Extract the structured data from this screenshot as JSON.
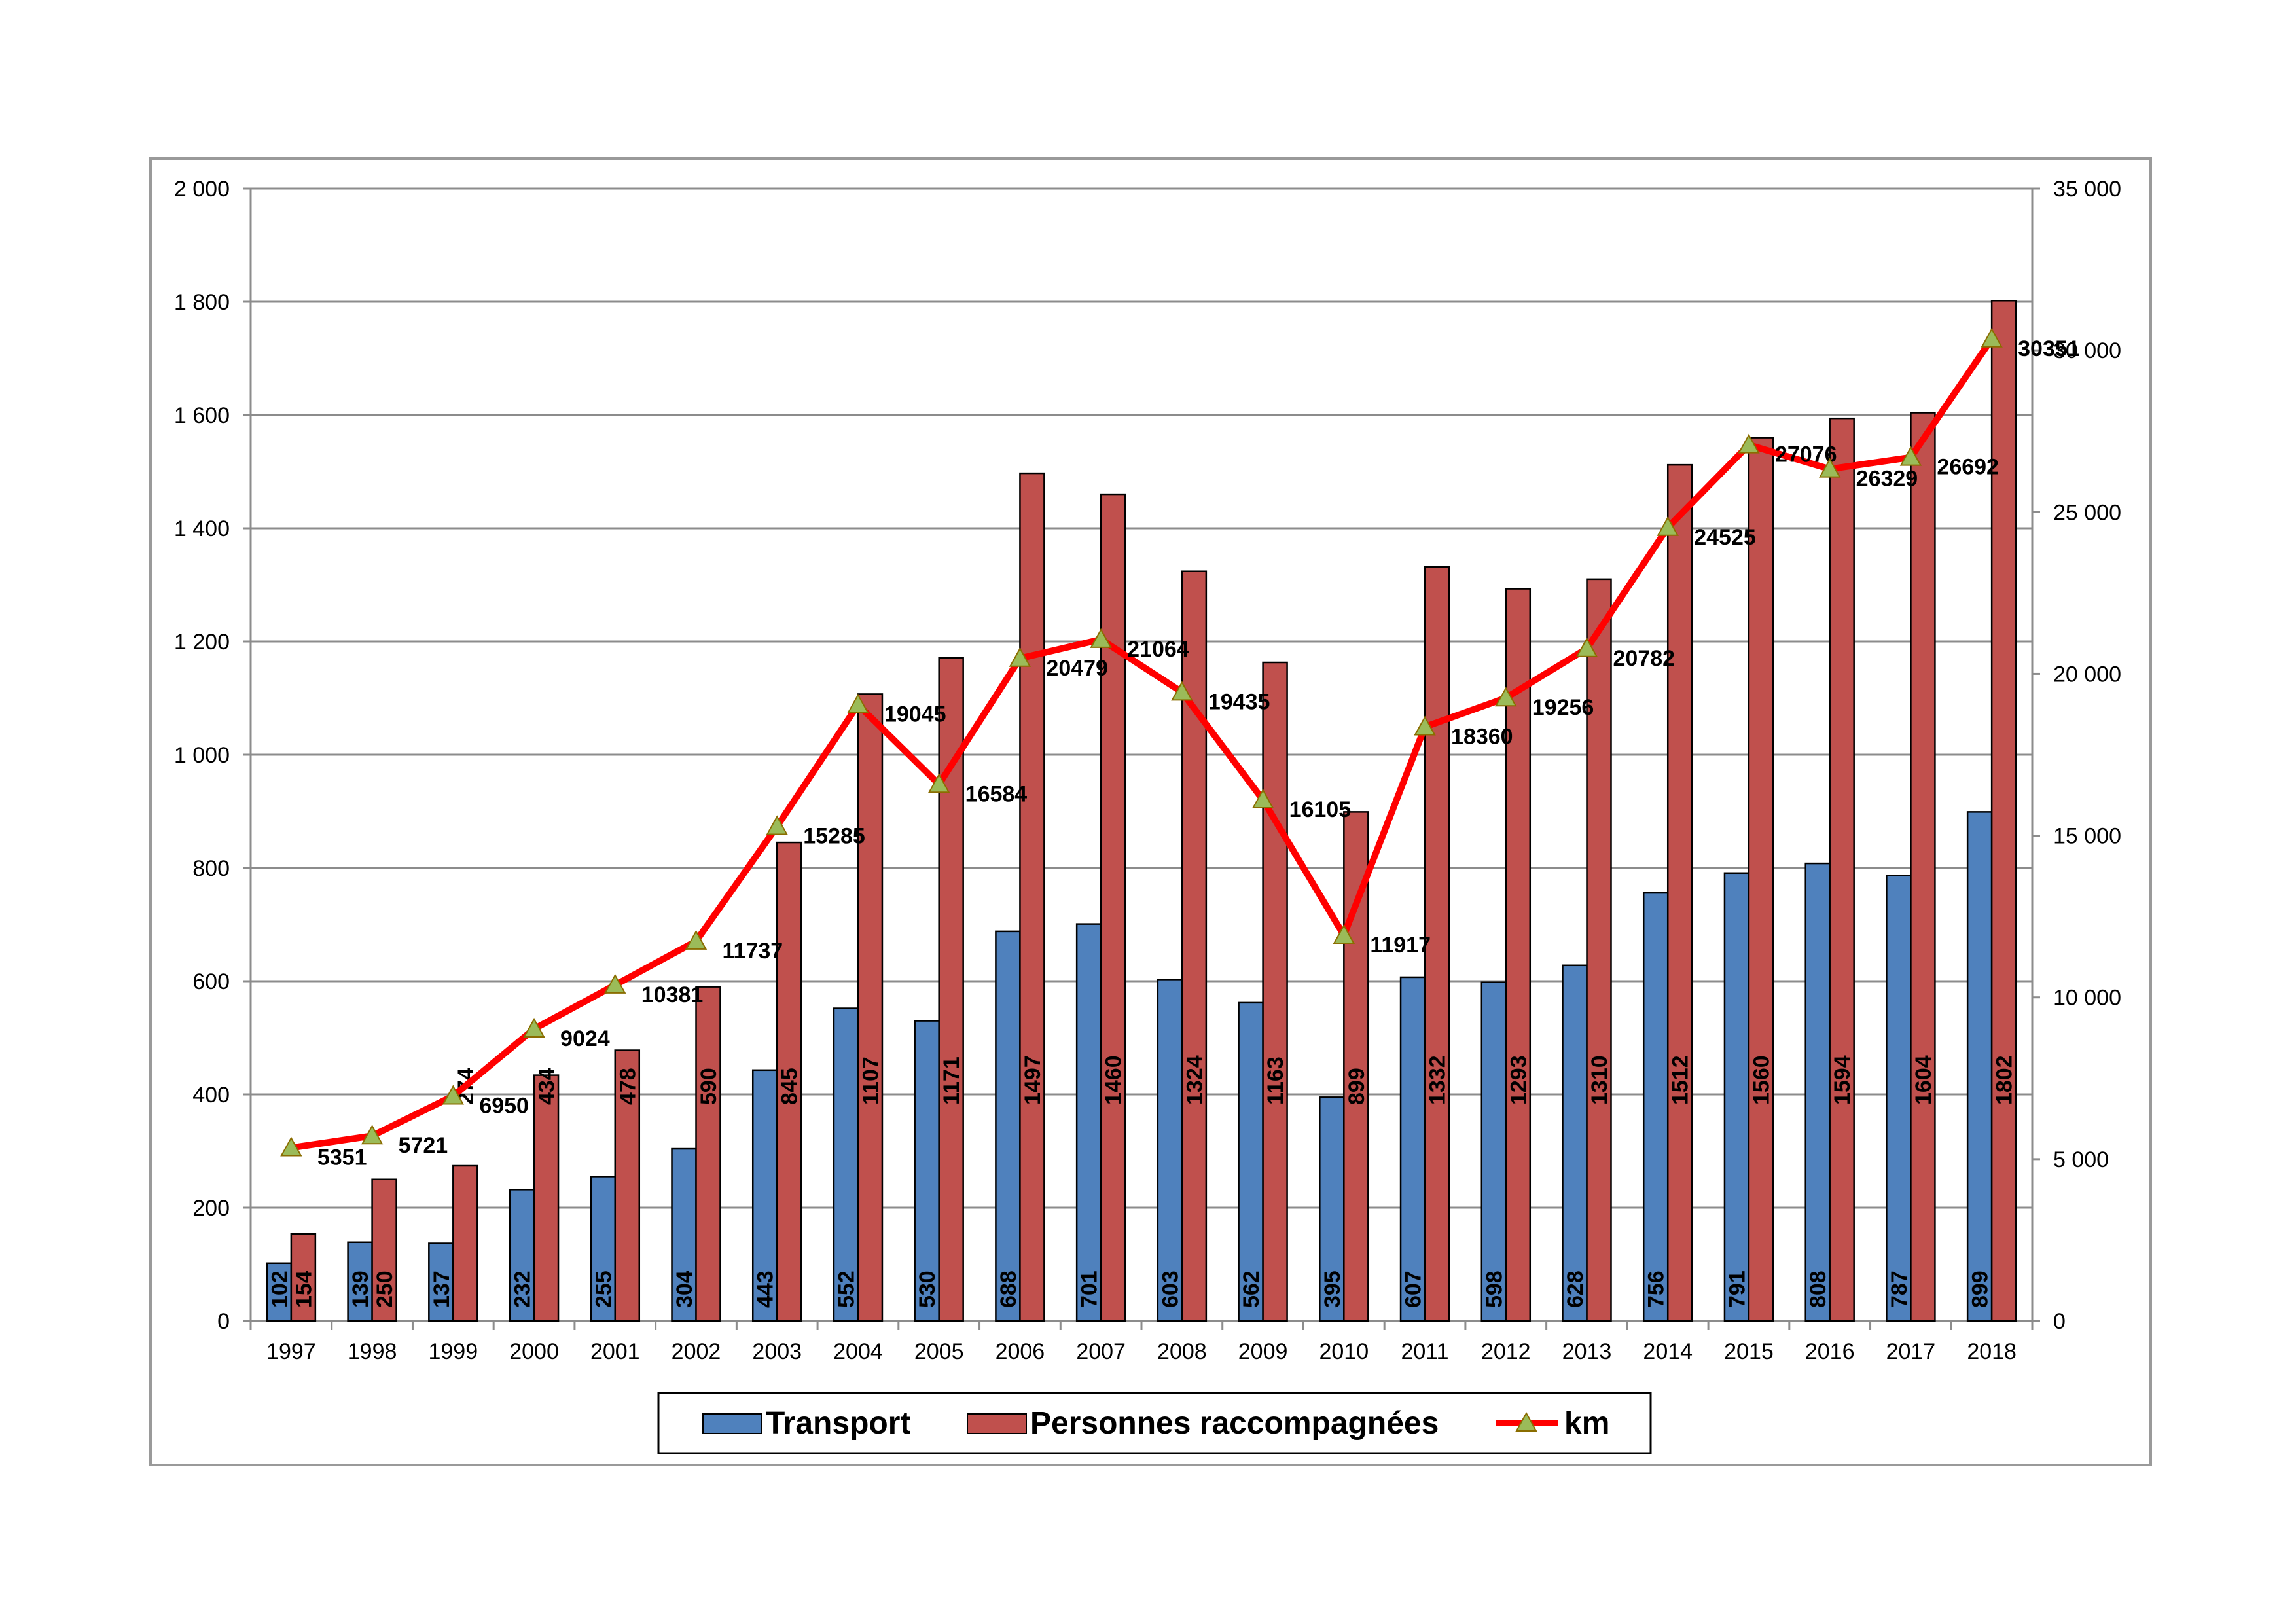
{
  "chart_data": {
    "type": "bar",
    "categories": [
      "1997",
      "1998",
      "1999",
      "2000",
      "2001",
      "2002",
      "2003",
      "2004",
      "2005",
      "2006",
      "2007",
      "2008",
      "2009",
      "2010",
      "2011",
      "2012",
      "2013",
      "2014",
      "2015",
      "2016",
      "2017",
      "2018"
    ],
    "series": [
      {
        "name": "Transport",
        "type": "bar",
        "axis": "left",
        "color": "#4f81bd",
        "values": [
          102,
          139,
          137,
          232,
          255,
          304,
          443,
          552,
          530,
          688,
          701,
          603,
          562,
          395,
          607,
          598,
          628,
          756,
          791,
          808,
          787,
          899
        ]
      },
      {
        "name": "Personnes raccompagnées",
        "type": "bar",
        "axis": "left",
        "color": "#c0504d",
        "values": [
          154,
          250,
          274,
          434,
          478,
          590,
          845,
          1107,
          1171,
          1497,
          1460,
          1324,
          1163,
          899,
          1332,
          1293,
          1310,
          1512,
          1560,
          1594,
          1604,
          1802
        ]
      },
      {
        "name": "km",
        "type": "line",
        "axis": "right",
        "color": "#ff0000",
        "marker": "triangle",
        "marker_color": "#9bbb59",
        "values": [
          5351,
          5721,
          6950,
          9024,
          10381,
          11737,
          15285,
          19045,
          16584,
          20479,
          21064,
          19435,
          16105,
          11917,
          18360,
          19256,
          20782,
          24525,
          27076,
          26329,
          26692,
          30351
        ]
      }
    ],
    "ylim_left": [
      0,
      2000
    ],
    "ylim_right": [
      0,
      35000
    ],
    "left_ticks": [
      0,
      200,
      400,
      600,
      800,
      1000,
      1200,
      1400,
      1600,
      1800,
      2000
    ],
    "left_tick_labels": [
      "0",
      "200",
      "400",
      "600",
      "800",
      "1 000",
      "1 200",
      "1 400",
      "1 600",
      "1 800",
      "2 000"
    ],
    "right_ticks": [
      0,
      5000,
      10000,
      15000,
      20000,
      25000,
      30000,
      35000
    ],
    "right_tick_labels": [
      "0",
      "5 000",
      "10 000",
      "15 000",
      "20 000",
      "25 000",
      "30 000",
      "35 000"
    ],
    "grid": true,
    "legend_position": "bottom"
  }
}
